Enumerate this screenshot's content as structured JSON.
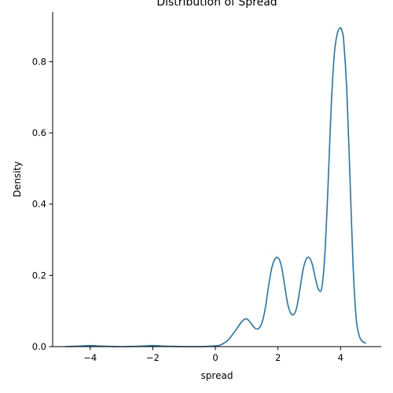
{
  "chart_data": {
    "type": "line",
    "title": "Distribution of Spread",
    "xlabel": "spread",
    "ylabel": "Density",
    "xlim": [
      -5.2,
      5.3
    ],
    "ylim": [
      0.0,
      0.94
    ],
    "xticks": [
      -4,
      -2,
      0,
      2,
      4
    ],
    "xtick_labels": [
      "−4",
      "−2",
      "0",
      "2",
      "4"
    ],
    "yticks": [
      0.0,
      0.2,
      0.4,
      0.6,
      0.8
    ],
    "ytick_labels": [
      "0.0",
      "0.2",
      "0.4",
      "0.6",
      "0.8"
    ],
    "grid": false,
    "legend": false,
    "series": [
      {
        "color": "#1f77b4",
        "x": [
          -4.8,
          -4.5,
          -4.2,
          -4.0,
          -3.8,
          -3.5,
          -3.0,
          -2.5,
          -2.2,
          -2.0,
          -1.8,
          -1.5,
          -1.0,
          -0.5,
          0.0,
          0.2,
          0.4,
          0.6,
          0.8,
          0.9,
          1.0,
          1.1,
          1.2,
          1.3,
          1.4,
          1.5,
          1.6,
          1.7,
          1.8,
          1.9,
          2.0,
          2.1,
          2.2,
          2.3,
          2.4,
          2.5,
          2.6,
          2.7,
          2.8,
          2.9,
          3.0,
          3.1,
          3.2,
          3.3,
          3.4,
          3.5,
          3.6,
          3.7,
          3.8,
          3.9,
          4.0,
          4.05,
          4.1,
          4.2,
          4.3,
          4.4,
          4.5,
          4.6,
          4.7,
          4.8
        ],
        "y": [
          0.0,
          0.001,
          0.002,
          0.003,
          0.002,
          0.001,
          0.0,
          0.001,
          0.002,
          0.003,
          0.002,
          0.001,
          0.0,
          0.0,
          0.002,
          0.006,
          0.018,
          0.04,
          0.065,
          0.075,
          0.078,
          0.07,
          0.058,
          0.05,
          0.052,
          0.07,
          0.11,
          0.17,
          0.22,
          0.245,
          0.25,
          0.23,
          0.18,
          0.125,
          0.095,
          0.09,
          0.11,
          0.16,
          0.215,
          0.245,
          0.25,
          0.23,
          0.19,
          0.16,
          0.165,
          0.26,
          0.45,
          0.67,
          0.82,
          0.88,
          0.895,
          0.885,
          0.86,
          0.72,
          0.48,
          0.23,
          0.08,
          0.03,
          0.015,
          0.01
        ]
      }
    ]
  }
}
